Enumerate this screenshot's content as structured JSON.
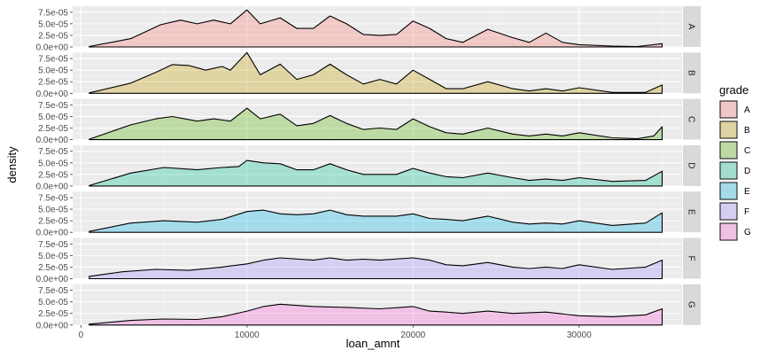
{
  "chart_data": {
    "type": "area",
    "subtype": "faceted density",
    "xlabel": "loan_amnt",
    "ylabel": "density",
    "xlim": [
      -500,
      36200
    ],
    "ylim": [
      0,
      8.8e-05
    ],
    "x_ticks": [
      0,
      10000,
      20000,
      30000
    ],
    "x_tick_labels": [
      "0",
      "10000",
      "20000",
      "30000"
    ],
    "y_ticks": [
      0,
      2.5e-05,
      5e-05,
      7.5e-05
    ],
    "y_tick_labels": [
      "0.0e+00",
      "2.5e-05",
      "5.0e-05",
      "7.5e-05"
    ],
    "grid": true,
    "legend": {
      "title": "grade",
      "position": "right",
      "entries": [
        "A",
        "B",
        "C",
        "D",
        "E",
        "F",
        "G"
      ]
    },
    "colors": {
      "A": "#F8766D",
      "B": "#C49A00",
      "C": "#53B400",
      "D": "#00C094",
      "E": "#00B6EB",
      "F": "#A58AFF",
      "G": "#FB61D7"
    },
    "fill_alpha": 0.3,
    "panel_background": "#ebebeb",
    "strip_background": "#d9d9d9",
    "series": [
      {
        "name": "A",
        "points": [
          [
            500,
            1e-06
          ],
          [
            3000,
            1.8e-05
          ],
          [
            4800,
            4.8e-05
          ],
          [
            6000,
            5.8e-05
          ],
          [
            7000,
            5e-05
          ],
          [
            8000,
            5.8e-05
          ],
          [
            9000,
            5e-05
          ],
          [
            10000,
            8e-05
          ],
          [
            10800,
            5e-05
          ],
          [
            12000,
            6.3e-05
          ],
          [
            13000,
            4e-05
          ],
          [
            14000,
            4e-05
          ],
          [
            15000,
            6.7e-05
          ],
          [
            16000,
            5e-05
          ],
          [
            17000,
            2.7e-05
          ],
          [
            18000,
            2.5e-05
          ],
          [
            19000,
            2.7e-05
          ],
          [
            20000,
            5.6e-05
          ],
          [
            21000,
            4e-05
          ],
          [
            22000,
            1.8e-05
          ],
          [
            23000,
            1e-05
          ],
          [
            24500,
            3.8e-05
          ],
          [
            26000,
            2e-05
          ],
          [
            27000,
            1e-05
          ],
          [
            28000,
            3e-05
          ],
          [
            29000,
            1e-05
          ],
          [
            30000,
            5e-06
          ],
          [
            32000,
            2e-06
          ],
          [
            33500,
            1e-06
          ],
          [
            35000,
            7e-06
          ]
        ]
      },
      {
        "name": "B",
        "points": [
          [
            500,
            1e-06
          ],
          [
            3000,
            2.2e-05
          ],
          [
            4500,
            4.5e-05
          ],
          [
            5500,
            6.2e-05
          ],
          [
            6500,
            6e-05
          ],
          [
            7500,
            5e-05
          ],
          [
            8500,
            5.8e-05
          ],
          [
            9000,
            5e-05
          ],
          [
            10000,
            8.8e-05
          ],
          [
            10800,
            4e-05
          ],
          [
            12000,
            6.3e-05
          ],
          [
            13000,
            3e-05
          ],
          [
            14000,
            4e-05
          ],
          [
            15000,
            6.3e-05
          ],
          [
            16000,
            4e-05
          ],
          [
            17000,
            2e-05
          ],
          [
            18000,
            3e-05
          ],
          [
            19000,
            2e-05
          ],
          [
            20000,
            5e-05
          ],
          [
            21000,
            3e-05
          ],
          [
            22000,
            1e-05
          ],
          [
            23000,
            1e-05
          ],
          [
            24500,
            2.5e-05
          ],
          [
            26000,
            1e-05
          ],
          [
            27000,
            5e-06
          ],
          [
            28000,
            1e-05
          ],
          [
            29000,
            5e-06
          ],
          [
            30000,
            1.2e-05
          ],
          [
            32000,
            2e-06
          ],
          [
            34000,
            2e-06
          ],
          [
            35000,
            1.8e-05
          ]
        ]
      },
      {
        "name": "C",
        "points": [
          [
            500,
            1e-06
          ],
          [
            3000,
            3.2e-05
          ],
          [
            4500,
            4.5e-05
          ],
          [
            5500,
            5e-05
          ],
          [
            7000,
            4e-05
          ],
          [
            8000,
            4.5e-05
          ],
          [
            9000,
            4e-05
          ],
          [
            10000,
            6.8e-05
          ],
          [
            10800,
            4.5e-05
          ],
          [
            12000,
            5.5e-05
          ],
          [
            13000,
            3e-05
          ],
          [
            14000,
            3.5e-05
          ],
          [
            15000,
            5.2e-05
          ],
          [
            16000,
            3.5e-05
          ],
          [
            17000,
            2.2e-05
          ],
          [
            18000,
            2.5e-05
          ],
          [
            19000,
            2.2e-05
          ],
          [
            20000,
            4.5e-05
          ],
          [
            21000,
            2.8e-05
          ],
          [
            22000,
            1.5e-05
          ],
          [
            23000,
            1.2e-05
          ],
          [
            24500,
            2.5e-05
          ],
          [
            26000,
            1.2e-05
          ],
          [
            27000,
            8e-06
          ],
          [
            28000,
            1.2e-05
          ],
          [
            29000,
            8e-06
          ],
          [
            30000,
            1.5e-05
          ],
          [
            32000,
            4e-06
          ],
          [
            33500,
            2e-06
          ],
          [
            34500,
            8e-06
          ],
          [
            35000,
            2.8e-05
          ]
        ]
      },
      {
        "name": "D",
        "points": [
          [
            500,
            1e-06
          ],
          [
            3000,
            2.8e-05
          ],
          [
            5000,
            4e-05
          ],
          [
            7000,
            3.5e-05
          ],
          [
            8500,
            4e-05
          ],
          [
            9500,
            4.2e-05
          ],
          [
            10000,
            5.5e-05
          ],
          [
            11000,
            5e-05
          ],
          [
            12000,
            4.8e-05
          ],
          [
            13000,
            3.5e-05
          ],
          [
            14000,
            3.5e-05
          ],
          [
            15000,
            4.8e-05
          ],
          [
            16000,
            3.5e-05
          ],
          [
            17000,
            2.5e-05
          ],
          [
            18000,
            2.5e-05
          ],
          [
            19000,
            2.5e-05
          ],
          [
            20000,
            3.8e-05
          ],
          [
            21000,
            2.8e-05
          ],
          [
            22000,
            2e-05
          ],
          [
            23000,
            1.8e-05
          ],
          [
            24500,
            2.8e-05
          ],
          [
            26000,
            1.8e-05
          ],
          [
            27000,
            1.2e-05
          ],
          [
            28000,
            1.5e-05
          ],
          [
            29000,
            1.2e-05
          ],
          [
            30000,
            1.8e-05
          ],
          [
            32000,
            1e-05
          ],
          [
            34000,
            1.2e-05
          ],
          [
            35000,
            3.2e-05
          ]
        ]
      },
      {
        "name": "E",
        "points": [
          [
            500,
            2e-06
          ],
          [
            3000,
            2e-05
          ],
          [
            5000,
            2.5e-05
          ],
          [
            7000,
            2.2e-05
          ],
          [
            8500,
            2.8e-05
          ],
          [
            10000,
            4.5e-05
          ],
          [
            11000,
            4.8e-05
          ],
          [
            12000,
            4e-05
          ],
          [
            13000,
            3.8e-05
          ],
          [
            14000,
            4e-05
          ],
          [
            15000,
            4.8e-05
          ],
          [
            16000,
            3.8e-05
          ],
          [
            17000,
            3.5e-05
          ],
          [
            18000,
            3.5e-05
          ],
          [
            19000,
            3.5e-05
          ],
          [
            20000,
            4e-05
          ],
          [
            21000,
            3e-05
          ],
          [
            22000,
            2.8e-05
          ],
          [
            23000,
            2.5e-05
          ],
          [
            24500,
            3.5e-05
          ],
          [
            26000,
            2.2e-05
          ],
          [
            27000,
            1.8e-05
          ],
          [
            28000,
            2e-05
          ],
          [
            29000,
            1.8e-05
          ],
          [
            30000,
            2.5e-05
          ],
          [
            32000,
            1.5e-05
          ],
          [
            34000,
            2e-05
          ],
          [
            35000,
            4.2e-05
          ]
        ]
      },
      {
        "name": "F",
        "points": [
          [
            500,
            5e-06
          ],
          [
            2500,
            1.5e-05
          ],
          [
            4500,
            2e-05
          ],
          [
            6500,
            1.8e-05
          ],
          [
            8500,
            2.5e-05
          ],
          [
            10000,
            3.2e-05
          ],
          [
            11000,
            4e-05
          ],
          [
            12000,
            4.5e-05
          ],
          [
            14000,
            4e-05
          ],
          [
            15000,
            4.5e-05
          ],
          [
            16000,
            4e-05
          ],
          [
            17000,
            4.2e-05
          ],
          [
            18000,
            4e-05
          ],
          [
            20000,
            4.5e-05
          ],
          [
            21000,
            4e-05
          ],
          [
            22000,
            3e-05
          ],
          [
            23000,
            2.8e-05
          ],
          [
            24500,
            3.5e-05
          ],
          [
            26000,
            2.5e-05
          ],
          [
            27000,
            2.2e-05
          ],
          [
            28000,
            2.5e-05
          ],
          [
            29000,
            2.2e-05
          ],
          [
            30000,
            3e-05
          ],
          [
            32000,
            2e-05
          ],
          [
            34000,
            2.5e-05
          ],
          [
            35000,
            4e-05
          ]
        ]
      },
      {
        "name": "G",
        "points": [
          [
            500,
            2e-06
          ],
          [
            3000,
            1e-05
          ],
          [
            5000,
            1.3e-05
          ],
          [
            7000,
            1.2e-05
          ],
          [
            8500,
            1.8e-05
          ],
          [
            10000,
            3e-05
          ],
          [
            11000,
            4e-05
          ],
          [
            12000,
            4.5e-05
          ],
          [
            14000,
            4e-05
          ],
          [
            16000,
            3.8e-05
          ],
          [
            18000,
            3.5e-05
          ],
          [
            20000,
            4e-05
          ],
          [
            21000,
            3e-05
          ],
          [
            22000,
            2.8e-05
          ],
          [
            23000,
            2.5e-05
          ],
          [
            24500,
            3e-05
          ],
          [
            26000,
            2.5e-05
          ],
          [
            28000,
            2.8e-05
          ],
          [
            30000,
            2e-05
          ],
          [
            32000,
            1.8e-05
          ],
          [
            34000,
            2.2e-05
          ],
          [
            35000,
            3.5e-05
          ]
        ]
      }
    ]
  }
}
